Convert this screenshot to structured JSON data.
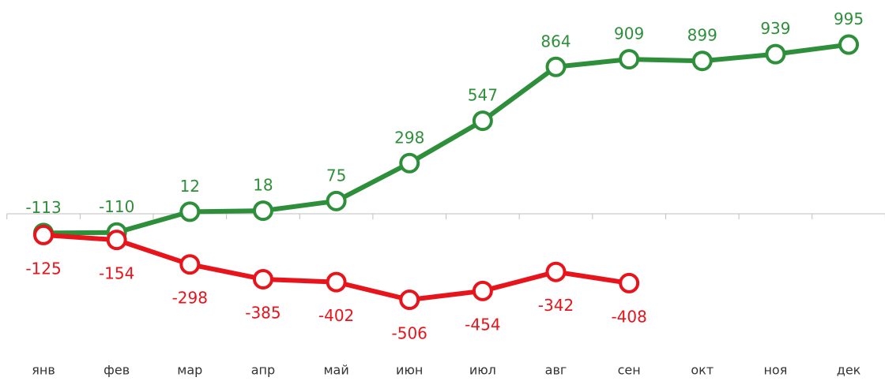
{
  "chart_data": {
    "type": "line",
    "categories": [
      "янв",
      "фев",
      "мар",
      "апр",
      "май",
      "июн",
      "июл",
      "авг",
      "сен",
      "окт",
      "ноя",
      "дек"
    ],
    "series": [
      {
        "name": null,
        "color": "#2e8f3a",
        "label_side": "above",
        "values": [
          -113,
          -110,
          12,
          18,
          75,
          298,
          547,
          864,
          909,
          899,
          939,
          995
        ]
      },
      {
        "name": null,
        "color": "#e8141c",
        "label_side": "below",
        "values": [
          -125,
          -154,
          -298,
          -385,
          -402,
          -506,
          -454,
          -342,
          -408,
          null,
          null,
          null
        ]
      }
    ],
    "ylim": [
      -800,
      1250
    ],
    "grid": false,
    "legend": false
  }
}
